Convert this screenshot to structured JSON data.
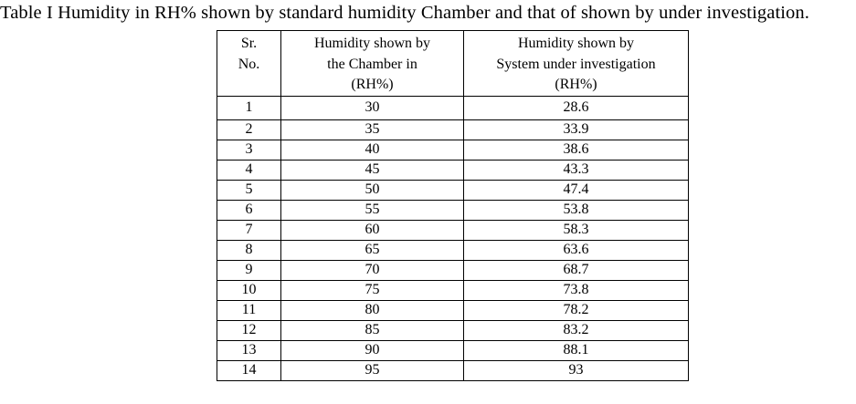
{
  "page": {
    "title": "Table I Humidity in RH% shown by standard humidity Chamber and that of shown by under investigation."
  },
  "table": {
    "header": {
      "col_sr": {
        "lines": [
          "Sr.",
          "No."
        ]
      },
      "col_chamber": {
        "lines": [
          "Humidity shown by",
          "the Chamber in",
          "(RH%)"
        ]
      },
      "col_system": {
        "lines": [
          "Humidity shown by",
          "System under investigation",
          "(RH%)"
        ]
      }
    }
  },
  "chart_data": {
    "type": "table",
    "title": "Table I Humidity in RH% shown by standard humidity Chamber and that of shown by under investigation.",
    "columns": [
      "Sr. No.",
      "Humidity shown by the Chamber in (RH%)",
      "Humidity shown by System under investigation (RH%)"
    ],
    "rows": [
      [
        1,
        30,
        28.6
      ],
      [
        2,
        35,
        33.9
      ],
      [
        3,
        40,
        38.6
      ],
      [
        4,
        45,
        43.3
      ],
      [
        5,
        50,
        47.4
      ],
      [
        6,
        55,
        53.8
      ],
      [
        7,
        60,
        58.3
      ],
      [
        8,
        65,
        63.6
      ],
      [
        9,
        70,
        68.7
      ],
      [
        10,
        75,
        73.8
      ],
      [
        11,
        80,
        78.2
      ],
      [
        12,
        85,
        83.2
      ],
      [
        13,
        90,
        88.1
      ],
      [
        14,
        95,
        93
      ]
    ]
  }
}
